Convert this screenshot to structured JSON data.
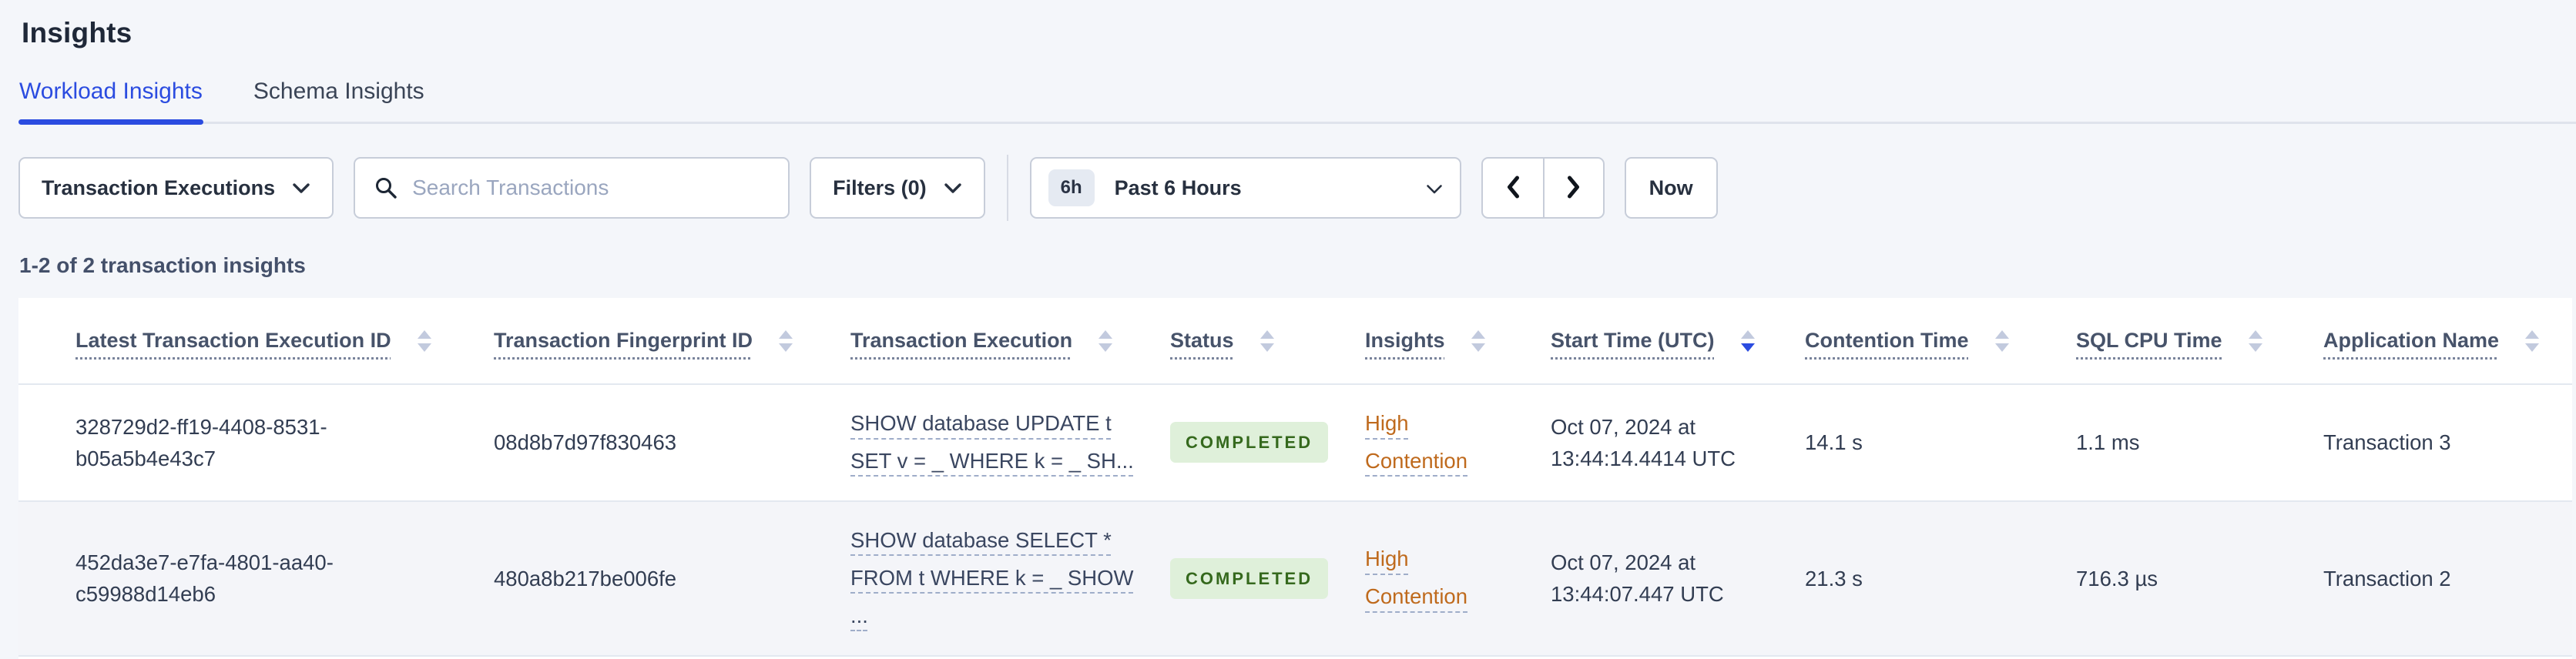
{
  "header": {
    "title": "Insights"
  },
  "tabs": [
    {
      "label": "Workload Insights",
      "active": true
    },
    {
      "label": "Schema Insights",
      "active": false
    }
  ],
  "toolbar": {
    "type_dropdown": {
      "label": "Transaction Executions"
    },
    "search": {
      "placeholder": "Search Transactions",
      "value": ""
    },
    "filters": {
      "label": "Filters (0)"
    },
    "time_picker": {
      "badge": "6h",
      "label": "Past 6 Hours"
    },
    "prev_label": "previous time interval",
    "next_label": "next time interval",
    "now_label": "Now"
  },
  "summary": {
    "text": "1-2 of 2 transaction insights"
  },
  "table": {
    "sort": {
      "column": "Start Time (UTC)",
      "direction": "desc"
    },
    "columns": [
      {
        "label": "Latest Transaction Execution ID",
        "sortable": true,
        "sorted": null
      },
      {
        "label": "Transaction Fingerprint ID",
        "sortable": true,
        "sorted": null
      },
      {
        "label": "Transaction Execution",
        "sortable": true,
        "sorted": null
      },
      {
        "label": "Status",
        "sortable": true,
        "sorted": null
      },
      {
        "label": "Insights",
        "sortable": true,
        "sorted": null
      },
      {
        "label": "Start Time (UTC)",
        "sortable": true,
        "sorted": "desc"
      },
      {
        "label": "Contention Time",
        "sortable": true,
        "sorted": null
      },
      {
        "label": "SQL CPU Time",
        "sortable": true,
        "sorted": null
      },
      {
        "label": "Application Name",
        "sortable": true,
        "sorted": null
      }
    ],
    "rows": [
      {
        "execution_id_lines": [
          "328729d2-ff19-4408-8531-",
          "b05a5b4e43c7"
        ],
        "fingerprint_id": "08d8b7d97f830463",
        "execution_lines": [
          "SHOW database UPDATE t",
          "SET v = _ WHERE k = _ SH..."
        ],
        "status": "COMPLETED",
        "insight_lines": [
          "High",
          "Contention"
        ],
        "start_time_lines": [
          "Oct 07, 2024 at",
          "13:44:14.4414 UTC"
        ],
        "contention_time": "14.1 s",
        "sql_cpu_time": "1.1 ms",
        "application_name": "Transaction 3"
      },
      {
        "execution_id_lines": [
          "452da3e7-e7fa-4801-aa40-",
          "c59988d14eb6"
        ],
        "fingerprint_id": "480a8b217be006fe",
        "execution_lines": [
          "SHOW database SELECT *",
          "FROM t WHERE k = _ SHOW",
          "..."
        ],
        "status": "COMPLETED",
        "insight_lines": [
          "High",
          "Contention"
        ],
        "start_time_lines": [
          "Oct 07, 2024 at",
          "13:44:07.447 UTC"
        ],
        "contention_time": "21.3 s",
        "sql_cpu_time": "716.3 µs",
        "application_name": "Transaction 2"
      }
    ]
  },
  "colors": {
    "accent": "#2b4ce0",
    "success-bg": "#dff0da",
    "success-text": "#35691d",
    "warning": "#bf6a1d",
    "page-bg": "#f4f6fa"
  }
}
